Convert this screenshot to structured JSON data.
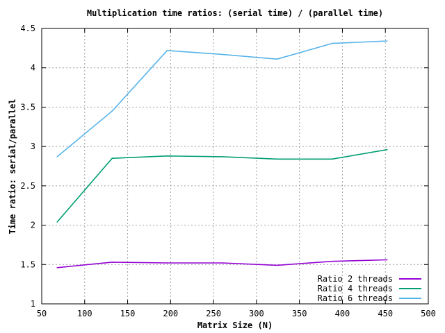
{
  "chart_data": {
    "type": "line",
    "title": "Multiplication time ratios: (serial time) / (parallel time)",
    "xlabel": "Matrix Size (N)",
    "ylabel": "Time ratio: serial/parallel",
    "xlim": [
      50,
      500
    ],
    "ylim": [
      1,
      4.5
    ],
    "x_ticks": [
      50,
      100,
      150,
      200,
      250,
      300,
      350,
      400,
      450,
      500
    ],
    "y_ticks": [
      1,
      1.5,
      2,
      2.5,
      3,
      3.5,
      4,
      4.5
    ],
    "grid": true,
    "legend_position": "bottom-right",
    "x": [
      68,
      132,
      196,
      260,
      324,
      388,
      452
    ],
    "series": [
      {
        "name": "Ratio 2 threads",
        "color": "#9400d3",
        "values": [
          1.46,
          1.53,
          1.52,
          1.52,
          1.49,
          1.54,
          1.56
        ]
      },
      {
        "name": "Ratio 4 threads",
        "color": "#009e73",
        "values": [
          2.04,
          2.85,
          2.88,
          2.87,
          2.84,
          2.84,
          2.96
        ]
      },
      {
        "name": "Ratio 6 threads",
        "color": "#56b4e9",
        "values": [
          2.87,
          3.45,
          4.22,
          4.17,
          4.11,
          4.31,
          4.34
        ]
      }
    ]
  }
}
